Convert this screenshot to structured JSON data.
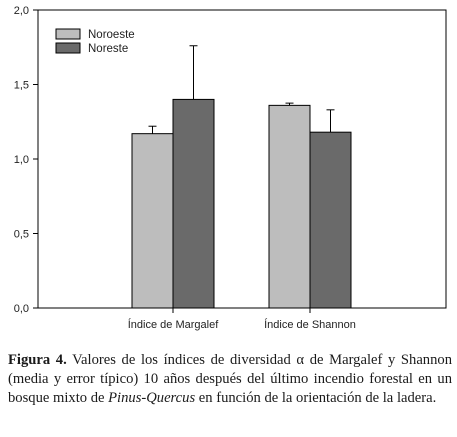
{
  "chart_data": {
    "type": "bar",
    "categories": [
      "Índice de Margalef",
      "Índice de Shannon"
    ],
    "series": [
      {
        "name": "Noroeste",
        "color": "#bdbdbd",
        "values": [
          1.17,
          1.36
        ],
        "errors": [
          0.05,
          0.015
        ]
      },
      {
        "name": "Noreste",
        "color": "#6a6a6a",
        "values": [
          1.4,
          1.18
        ],
        "errors": [
          0.36,
          0.15
        ]
      }
    ],
    "ylim": [
      0,
      2.0
    ],
    "yticks": [
      {
        "value": 0.0,
        "label": "0,0"
      },
      {
        "value": 0.5,
        "label": "0,5"
      },
      {
        "value": 1.0,
        "label": "1,0"
      },
      {
        "value": 1.5,
        "label": "1,5"
      },
      {
        "value": 2.0,
        "label": "2,0"
      }
    ],
    "grid": false,
    "legend_position": "top-left"
  },
  "caption": {
    "label": "Figura 4.",
    "text_before": " Valores de los índices de diversidad α de Margalef y Shannon (media y error típico) 10 años después del último incendio forestal en un bosque mixto de ",
    "italic": "Pinus-Quercus",
    "text_after": " en función de la orientación de la ladera."
  }
}
